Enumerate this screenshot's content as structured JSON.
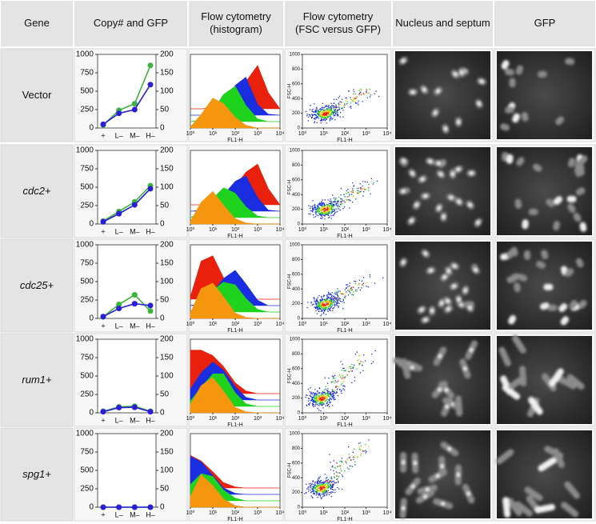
{
  "table": {
    "headers": [
      "Gene",
      "Copy# and GFP",
      "Flow cytometry (histogram)",
      "Flow cytometry (FSC versus GFP)",
      "Nucleus and septum",
      "GFP"
    ],
    "genes": [
      "Vector",
      "cdc2+",
      "cdc25+",
      "rum1+",
      "spg1+"
    ]
  },
  "chart_data": [
    {
      "type": "line",
      "categories": [
        "+",
        "L–",
        "M–",
        "H–"
      ],
      "ylim": [
        0,
        1000
      ],
      "yticks": [
        0,
        250,
        500,
        750,
        1000
      ],
      "y2lim": [
        0,
        200
      ],
      "y2ticks": [
        0,
        50,
        100,
        150,
        200
      ],
      "series": [
        {
          "color": "#3cb43c",
          "values": [
            40,
            240,
            330,
            850
          ]
        },
        {
          "color": "#2b1fd6",
          "axis": "y2",
          "values": [
            10,
            40,
            50,
            118
          ]
        }
      ]
    },
    {
      "type": "line",
      "categories": [
        "+",
        "L–",
        "M–",
        "H–"
      ],
      "ylim": [
        0,
        1000
      ],
      "yticks": [
        0,
        250,
        500,
        750,
        1000
      ],
      "y2lim": [
        0,
        200
      ],
      "y2ticks": [
        0,
        50,
        100,
        150,
        200
      ],
      "series": [
        {
          "color": "#3cb43c",
          "values": [
            40,
            170,
            300,
            520
          ]
        },
        {
          "color": "#2b1fd6",
          "axis": "y2",
          "values": [
            6,
            28,
            52,
            96
          ]
        }
      ]
    },
    {
      "type": "line",
      "categories": [
        "+",
        "L–",
        "M–",
        "H–"
      ],
      "ylim": [
        0,
        1000
      ],
      "yticks": [
        0,
        250,
        500,
        750,
        1000
      ],
      "y2lim": [
        0,
        200
      ],
      "y2ticks": [
        0,
        50,
        100,
        150,
        200
      ],
      "series": [
        {
          "color": "#3cb43c",
          "values": [
            20,
            190,
            320,
            100
          ]
        },
        {
          "color": "#2b1fd6",
          "axis": "y2",
          "values": [
            5,
            27,
            40,
            35
          ]
        }
      ]
    },
    {
      "type": "line",
      "categories": [
        "+",
        "L–",
        "M–",
        "H–"
      ],
      "ylim": [
        0,
        1000
      ],
      "yticks": [
        0,
        250,
        500,
        750,
        1000
      ],
      "y2lim": [
        0,
        200
      ],
      "y2ticks": [
        0,
        50,
        100,
        150,
        200
      ],
      "series": [
        {
          "color": "#3cb43c",
          "values": [
            20,
            80,
            90,
            20
          ]
        },
        {
          "color": "#2b1fd6",
          "axis": "y2",
          "values": [
            3,
            14,
            15,
            3
          ]
        }
      ]
    },
    {
      "type": "line",
      "categories": [
        "+",
        "L–",
        "M–",
        "H–"
      ],
      "ylim": [
        0,
        1000
      ],
      "yticks": [
        0,
        250,
        500,
        750,
        1000
      ],
      "y2lim": [
        0,
        200
      ],
      "y2ticks": [
        0,
        50,
        100,
        150,
        200
      ],
      "series": [
        {
          "color": "#3cb43c",
          "values": [
            0,
            0,
            0,
            0
          ]
        },
        {
          "color": "#2b1fd6",
          "axis": "y2",
          "values": [
            0,
            0,
            0,
            0
          ]
        }
      ]
    },
    {
      "type": "area",
      "log_x": true,
      "xlabel": "FL1-H",
      "xlim": [
        1,
        10000
      ],
      "ylim": [
        0,
        100
      ],
      "xticks": [
        {
          "value": 1,
          "label": "10⁰"
        },
        {
          "value": 10,
          "label": "10¹"
        },
        {
          "value": 100,
          "label": "10²"
        },
        {
          "value": 1000,
          "label": "10³"
        },
        {
          "value": 10000,
          "label": "10⁴"
        }
      ],
      "x": [
        1,
        3,
        10,
        30,
        100,
        300,
        1000,
        3000,
        10000
      ],
      "series": [
        {
          "color": "#e8200c",
          "values": [
            0,
            0,
            2,
            8,
            20,
            50,
            80,
            30,
            0
          ]
        },
        {
          "color": "#1a2de0",
          "values": [
            0,
            0,
            5,
            20,
            55,
            70,
            20,
            2,
            0
          ]
        },
        {
          "color": "#1ed21e",
          "values": [
            0,
            3,
            20,
            50,
            65,
            30,
            5,
            0,
            0
          ]
        },
        {
          "color": "#f5960f",
          "values": [
            2,
            25,
            55,
            45,
            20,
            5,
            0,
            0,
            0
          ]
        }
      ]
    },
    {
      "type": "area",
      "log_x": true,
      "xlabel": "FL1-H",
      "xlim": [
        1,
        10000
      ],
      "ylim": [
        0,
        100
      ],
      "xticks": [
        {
          "value": 1,
          "label": "10⁰"
        },
        {
          "value": 10,
          "label": "10¹"
        },
        {
          "value": 100,
          "label": "10²"
        },
        {
          "value": 1000,
          "label": "10³"
        },
        {
          "value": 10000,
          "label": "10⁴"
        }
      ],
      "x": [
        1,
        3,
        10,
        30,
        100,
        300,
        1000,
        3000,
        10000
      ],
      "series": [
        {
          "color": "#e8200c",
          "values": [
            0,
            0,
            5,
            15,
            35,
            60,
            75,
            30,
            0
          ]
        },
        {
          "color": "#1a2de0",
          "values": [
            0,
            2,
            10,
            30,
            55,
            65,
            25,
            2,
            0
          ]
        },
        {
          "color": "#1ed21e",
          "values": [
            0,
            10,
            35,
            55,
            45,
            20,
            3,
            0,
            0
          ]
        },
        {
          "color": "#f5960f",
          "values": [
            5,
            40,
            60,
            35,
            10,
            2,
            0,
            0,
            0
          ]
        }
      ]
    },
    {
      "type": "area",
      "log_x": true,
      "xlabel": "FL1-H",
      "xlim": [
        1,
        10000
      ],
      "ylim": [
        0,
        100
      ],
      "xticks": [
        {
          "value": 1,
          "label": "10⁰"
        },
        {
          "value": 10,
          "label": "10¹"
        },
        {
          "value": 100,
          "label": "10²"
        },
        {
          "value": 1000,
          "label": "10³"
        },
        {
          "value": 10000,
          "label": "10⁴"
        }
      ],
      "x": [
        1,
        3,
        10,
        30,
        100,
        300,
        1000,
        3000,
        10000
      ],
      "series": [
        {
          "color": "#e8200c",
          "values": [
            5,
            70,
            80,
            40,
            10,
            2,
            0,
            0,
            0
          ]
        },
        {
          "color": "#1a2de0",
          "values": [
            0,
            5,
            25,
            50,
            65,
            40,
            10,
            0,
            0
          ]
        },
        {
          "color": "#1ed21e",
          "values": [
            0,
            10,
            40,
            55,
            50,
            25,
            5,
            0,
            0
          ]
        },
        {
          "color": "#f5960f",
          "values": [
            10,
            55,
            65,
            40,
            10,
            2,
            0,
            0,
            0
          ]
        }
      ]
    },
    {
      "type": "area",
      "log_x": true,
      "xlabel": "FL1-H",
      "xlim": [
        1,
        10000
      ],
      "ylim": [
        0,
        100
      ],
      "xticks": [
        {
          "value": 1,
          "label": "10⁰"
        },
        {
          "value": 10,
          "label": "10¹"
        },
        {
          "value": 100,
          "label": "10²"
        },
        {
          "value": 1000,
          "label": "10³"
        },
        {
          "value": 10000,
          "label": "10⁴"
        }
      ],
      "x": [
        1,
        3,
        10,
        30,
        100,
        300,
        1000,
        3000,
        10000
      ],
      "series": [
        {
          "color": "#e8200c",
          "values": [
            80,
            80,
            70,
            50,
            20,
            5,
            0,
            0,
            0
          ]
        },
        {
          "color": "#1a2de0",
          "values": [
            20,
            50,
            70,
            55,
            25,
            5,
            0,
            0,
            0
          ]
        },
        {
          "color": "#1ed21e",
          "values": [
            10,
            35,
            60,
            60,
            25,
            5,
            0,
            0,
            0
          ]
        },
        {
          "color": "#f5960f",
          "values": [
            15,
            50,
            65,
            40,
            10,
            2,
            0,
            0,
            0
          ]
        }
      ]
    },
    {
      "type": "area",
      "log_x": true,
      "xlabel": "FL1-H",
      "xlim": [
        1,
        10000
      ],
      "ylim": [
        0,
        100
      ],
      "xticks": [
        {
          "value": 1,
          "label": "10⁰"
        },
        {
          "value": 10,
          "label": "10¹"
        },
        {
          "value": 100,
          "label": "10²"
        },
        {
          "value": 1000,
          "label": "10³"
        },
        {
          "value": 10000,
          "label": "10⁴"
        }
      ],
      "x": [
        1,
        3,
        10,
        30,
        100,
        300,
        1000,
        3000,
        10000
      ],
      "series": [
        {
          "color": "#e8200c",
          "values": [
            60,
            50,
            30,
            10,
            2,
            0,
            0,
            0,
            0
          ]
        },
        {
          "color": "#1a2de0",
          "values": [
            70,
            60,
            35,
            12,
            2,
            0,
            0,
            0,
            0
          ]
        },
        {
          "color": "#1ed21e",
          "values": [
            30,
            50,
            45,
            20,
            5,
            0,
            0,
            0,
            0
          ]
        },
        {
          "color": "#f5960f",
          "values": [
            20,
            60,
            40,
            15,
            3,
            0,
            0,
            0,
            0
          ]
        }
      ]
    },
    {
      "type": "scatter",
      "log_x": true,
      "xlabel": "FL1-H",
      "ylabel": "FSC-H",
      "xlim": [
        1,
        10000
      ],
      "ylim": [
        0,
        1000
      ],
      "yticks": [
        0,
        200,
        400,
        600,
        800,
        1000
      ],
      "xticks": [
        {
          "value": 1,
          "label": "10⁰"
        },
        {
          "value": 10,
          "label": "10¹"
        },
        {
          "value": 100,
          "label": "10²"
        },
        {
          "value": 1000,
          "label": "10³"
        },
        {
          "value": 10000,
          "label": "10⁴"
        }
      ]
    },
    {
      "type": "scatter",
      "log_x": true,
      "xlabel": "FL1-H",
      "ylabel": "FSC-H",
      "xlim": [
        1,
        10000
      ],
      "ylim": [
        0,
        1000
      ],
      "yticks": [
        0,
        200,
        400,
        600,
        800,
        1000
      ],
      "xticks": [
        {
          "value": 1,
          "label": "10⁰"
        },
        {
          "value": 10,
          "label": "10¹"
        },
        {
          "value": 100,
          "label": "10²"
        },
        {
          "value": 1000,
          "label": "10³"
        },
        {
          "value": 10000,
          "label": "10⁴"
        }
      ]
    },
    {
      "type": "scatter",
      "log_x": true,
      "xlabel": "FL1-H",
      "ylabel": "FSC-H",
      "xlim": [
        1,
        10000
      ],
      "ylim": [
        0,
        1000
      ],
      "yticks": [
        0,
        200,
        400,
        600,
        800,
        1000
      ],
      "xticks": [
        {
          "value": 1,
          "label": "10⁰"
        },
        {
          "value": 10,
          "label": "10¹"
        },
        {
          "value": 100,
          "label": "10²"
        },
        {
          "value": 1000,
          "label": "10³"
        },
        {
          "value": 10000,
          "label": "10⁴"
        }
      ]
    },
    {
      "type": "scatter",
      "log_x": true,
      "xlabel": "FL1-H",
      "ylabel": "FSC-H",
      "xlim": [
        1,
        10000
      ],
      "ylim": [
        0,
        1000
      ],
      "yticks": [
        0,
        200,
        400,
        600,
        800,
        1000
      ],
      "xticks": [
        {
          "value": 1,
          "label": "10⁰"
        },
        {
          "value": 10,
          "label": "10¹"
        },
        {
          "value": 100,
          "label": "10²"
        },
        {
          "value": 1000,
          "label": "10³"
        },
        {
          "value": 10000,
          "label": "10⁴"
        }
      ]
    },
    {
      "type": "scatter",
      "log_x": true,
      "xlabel": "FL1-H",
      "ylabel": "FSC-H",
      "xlim": [
        1,
        10000
      ],
      "ylim": [
        0,
        1000
      ],
      "yticks": [
        0,
        200,
        400,
        600,
        800,
        1000
      ],
      "xticks": [
        {
          "value": 1,
          "label": "10⁰"
        },
        {
          "value": 10,
          "label": "10¹"
        },
        {
          "value": 100,
          "label": "10²"
        },
        {
          "value": 1000,
          "label": "10³"
        },
        {
          "value": 10000,
          "label": "10⁴"
        }
      ]
    }
  ]
}
